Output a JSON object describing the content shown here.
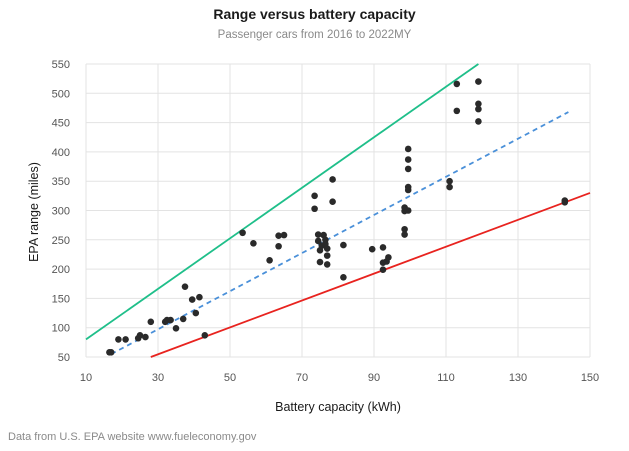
{
  "chart_data": {
    "type": "scatter",
    "title": "Range versus battery capacity",
    "subtitle": "Passenger cars from 2016 to 2022MY",
    "xlabel": "Battery capacity (kWh)",
    "ylabel": "EPA range (miles)",
    "xlim": [
      10,
      150
    ],
    "ylim": [
      50,
      550
    ],
    "xticks": [
      10,
      30,
      50,
      70,
      90,
      110,
      130,
      150
    ],
    "yticks": [
      50,
      100,
      150,
      200,
      250,
      300,
      350,
      400,
      450,
      500,
      550
    ],
    "grid": true,
    "source_note": "Data from U.S. EPA website www.fueleconomy.gov",
    "colors": {
      "points": "#2a2a2a",
      "upper_line": "#1fbf8a",
      "middle_line": "#4a90d9",
      "lower_line": "#e8231f",
      "grid": "#e3e3e3"
    },
    "reference_lines": [
      {
        "name": "upper",
        "color": "#1fbf8a",
        "style": "solid",
        "x": [
          10,
          119
        ],
        "y": [
          80,
          550
        ]
      },
      {
        "name": "middle",
        "color": "#4a90d9",
        "style": "dashed",
        "x": [
          17,
          144
        ],
        "y": [
          55,
          468
        ]
      },
      {
        "name": "lower",
        "color": "#e8231f",
        "style": "solid",
        "x": [
          28,
          150
        ],
        "y": [
          50,
          330
        ]
      }
    ],
    "points": [
      [
        16.5,
        58
      ],
      [
        17,
        58
      ],
      [
        19,
        80
      ],
      [
        21,
        80
      ],
      [
        24.5,
        82
      ],
      [
        25,
        87
      ],
      [
        26.5,
        84
      ],
      [
        28,
        110
      ],
      [
        32,
        110
      ],
      [
        32.5,
        113
      ],
      [
        33.5,
        113
      ],
      [
        35,
        99
      ],
      [
        37,
        115
      ],
      [
        37.5,
        170
      ],
      [
        39.5,
        148
      ],
      [
        40.5,
        125
      ],
      [
        41.5,
        152
      ],
      [
        43,
        87
      ],
      [
        53.5,
        262
      ],
      [
        56.5,
        244
      ],
      [
        61,
        215
      ],
      [
        63.5,
        257
      ],
      [
        63.5,
        239
      ],
      [
        65,
        258
      ],
      [
        73.5,
        325
      ],
      [
        73.5,
        303
      ],
      [
        74.5,
        259
      ],
      [
        74.5,
        248
      ],
      [
        75,
        232
      ],
      [
        75,
        212
      ],
      [
        75.5,
        240
      ],
      [
        76,
        258
      ],
      [
        76.5,
        250
      ],
      [
        76.5,
        243
      ],
      [
        77,
        235
      ],
      [
        77,
        208
      ],
      [
        77,
        223
      ],
      [
        78.5,
        353
      ],
      [
        78.5,
        315
      ],
      [
        81.5,
        241
      ],
      [
        81.5,
        186
      ],
      [
        89.5,
        234
      ],
      [
        92.5,
        237
      ],
      [
        92.5,
        211
      ],
      [
        92.5,
        199
      ],
      [
        93.5,
        213
      ],
      [
        94,
        220
      ],
      [
        98.5,
        305
      ],
      [
        98.5,
        299
      ],
      [
        98.5,
        268
      ],
      [
        98.5,
        259
      ],
      [
        99.5,
        405
      ],
      [
        99.5,
        387
      ],
      [
        99.5,
        371
      ],
      [
        99.5,
        340
      ],
      [
        99.5,
        335
      ],
      [
        99.5,
        300
      ],
      [
        111,
        350
      ],
      [
        111,
        340
      ],
      [
        113,
        516
      ],
      [
        113,
        470
      ],
      [
        119,
        520
      ],
      [
        119,
        482
      ],
      [
        119,
        473
      ],
      [
        119,
        452
      ],
      [
        143,
        317
      ],
      [
        143,
        314
      ]
    ]
  }
}
